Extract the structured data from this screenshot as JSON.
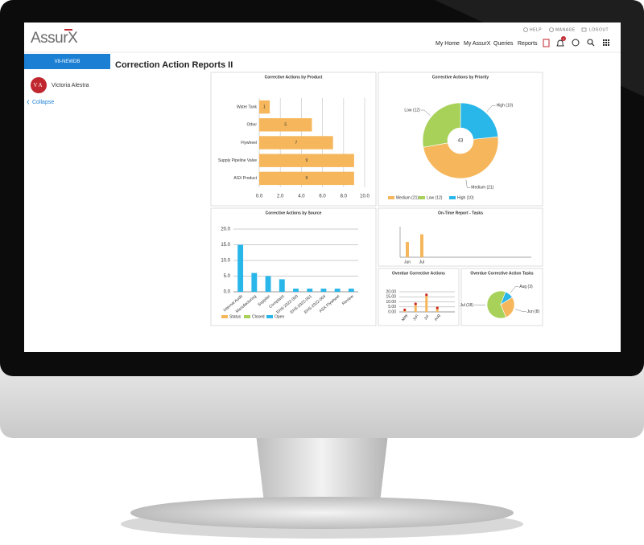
{
  "header": {
    "logo": "AssurX",
    "top_links": [
      "HELP",
      "MANAGE",
      "LOGOUT"
    ],
    "nav": [
      "My Home",
      "My AssurX",
      "Queries",
      "Reports"
    ],
    "notification_count": 1
  },
  "sidebar": {
    "database": "V8-NEWDB",
    "avatar": "VA",
    "user": "Victoria Alestra",
    "collapse": "Collapse"
  },
  "page_title": "Correction Action Reports II",
  "chart_data": [
    {
      "type": "hbar",
      "title": "Corrective Actions by Product",
      "categories": [
        "Water Tank",
        "Other",
        "Flywheel",
        "Supply Pipeline Valve",
        "ASX Product"
      ],
      "values": [
        1,
        5,
        7,
        9,
        9
      ],
      "color": "#f6b75c",
      "xlim": [
        0,
        10
      ],
      "xticks": [
        {
          "value": 0,
          "label": "0.0"
        },
        {
          "value": 2,
          "label": "2.0"
        },
        {
          "value": 4,
          "label": "4.0"
        },
        {
          "value": 6,
          "label": "6.0"
        },
        {
          "value": 8,
          "label": "8.0"
        },
        {
          "value": 10,
          "label": "10.0"
        }
      ],
      "grid": true
    },
    {
      "type": "donut",
      "title": "Corrective Actions by Priority",
      "values": [
        21,
        12,
        10
      ],
      "value_labels": [
        "Medium (21)",
        "Low (12)",
        "High (10)"
      ],
      "colors": [
        "#f6b75c",
        "#a8d15a",
        "#29b6e8"
      ],
      "total": 43
    },
    {
      "type": "bar",
      "title": "Corrective Actions by Source",
      "categories": [
        "Internal Audit",
        "Manufacturing",
        "Supplier",
        "Complaint",
        "EHS-2022-000",
        "EHS-2022-001",
        "EHS-2022-004",
        "ASX Flywheel",
        "Review"
      ],
      "series": [
        {
          "name": "Status",
          "color": "#f6b75c",
          "values": [
            null,
            null,
            null,
            null,
            null,
            null,
            null,
            null,
            null
          ]
        },
        {
          "name": "Closed",
          "color": "#a8d15a",
          "values": [
            null,
            null,
            null,
            null,
            null,
            null,
            null,
            null,
            null
          ]
        },
        {
          "name": "Open",
          "color": "#29b6e8",
          "values": [
            15,
            6,
            5,
            4,
            1,
            1,
            1,
            1,
            1
          ]
        }
      ],
      "ylim": [
        0,
        20
      ],
      "yticks": [
        {
          "value": 0,
          "label": "0.0"
        },
        {
          "value": 5,
          "label": "5.0"
        },
        {
          "value": 10,
          "label": "10.0"
        },
        {
          "value": 15,
          "label": "15.0"
        },
        {
          "value": 20,
          "label": "20.0"
        }
      ],
      "grid": true
    },
    {
      "type": "bar",
      "title": "On-Time Report - Tasks",
      "categories": [
        "Jun",
        "Jul"
      ],
      "values": [
        10,
        15
      ],
      "color": "#f6b75c",
      "ylim": [
        0,
        20
      ]
    },
    {
      "type": "bar",
      "title": "Overdue Corrective Actions",
      "categories": [
        "May",
        "Jun",
        "Jul",
        "Aug"
      ],
      "values": [
        2,
        8,
        17,
        4
      ],
      "color": "#f6b75c",
      "marker_color": "#c92a2a",
      "ylim": [
        0,
        20
      ],
      "yticks": [
        {
          "value": 0,
          "label": "0.00"
        },
        {
          "value": 5,
          "label": "5.00"
        },
        {
          "value": 10,
          "label": "10.00"
        },
        {
          "value": 15,
          "label": "15.00"
        },
        {
          "value": 20,
          "label": "20.00"
        }
      ],
      "grid": true
    },
    {
      "type": "pie",
      "title": "Overdue Corrective Action Tasks",
      "values": [
        18,
        3,
        8
      ],
      "value_labels": [
        "Jul (18)",
        "Aug (3)",
        "Jun (8)"
      ],
      "colors": [
        "#a8d15a",
        "#29b6e8",
        "#f6b75c"
      ]
    }
  ]
}
